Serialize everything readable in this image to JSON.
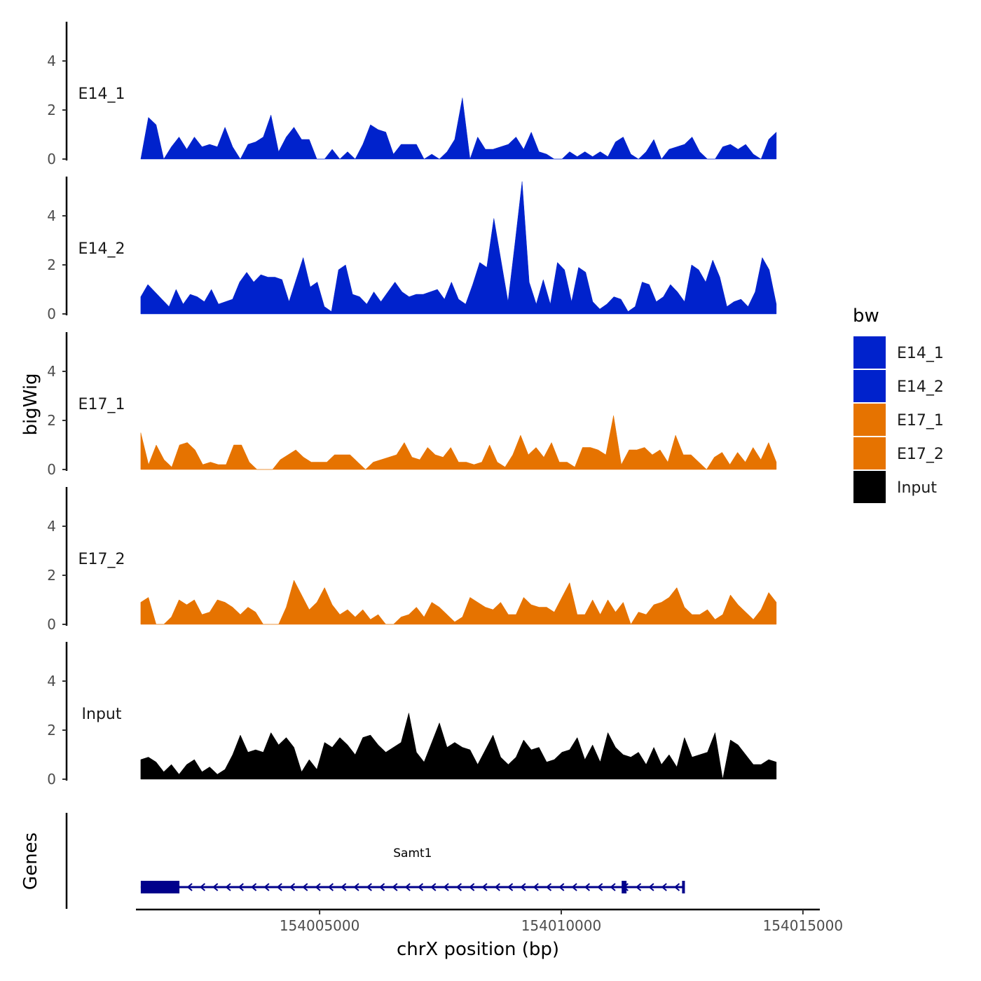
{
  "chart_data": {
    "type": "area",
    "ylabel": "bigWig",
    "xlabel": "chrX position (bp)",
    "ylim": [
      0,
      5.6
    ],
    "y_ticks": [
      "0",
      "2",
      "4"
    ],
    "xlim": [
      154001200,
      154015350
    ],
    "x_ticks": [
      {
        "value": 154005000,
        "label": "154005000"
      },
      {
        "value": 154010000,
        "label": "154010000"
      },
      {
        "value": 154015000,
        "label": "154015000"
      }
    ],
    "x_range_data": [
      154001300,
      154014450
    ],
    "legend": {
      "title": "bw",
      "entries": [
        {
          "name": "E14_1",
          "color": "#0022CC"
        },
        {
          "name": "E14_2",
          "color": "#0022CC"
        },
        {
          "name": "E17_1",
          "color": "#E67300"
        },
        {
          "name": "E17_2",
          "color": "#E67300"
        },
        {
          "name": "Input",
          "color": "#000000"
        }
      ]
    },
    "series": [
      {
        "name": "E14_1",
        "color": "#0022CC",
        "values": [
          0,
          1.7,
          1.4,
          0,
          0.5,
          0.9,
          0.4,
          0.9,
          0.5,
          0.6,
          0.5,
          1.3,
          0.5,
          0,
          0.6,
          0.7,
          0.9,
          1.8,
          0.3,
          0.9,
          1.3,
          0.8,
          0.8,
          0,
          0,
          0.4,
          0,
          0.3,
          0,
          0.6,
          1.4,
          1.2,
          1.1,
          0.2,
          0.6,
          0.6,
          0.6,
          0,
          0.2,
          0,
          0.3,
          0.8,
          2.5,
          0,
          0.9,
          0.4,
          0.4,
          0.5,
          0.6,
          0.9,
          0.4,
          1.1,
          0.3,
          0.2,
          0,
          0,
          0.3,
          0.1,
          0.3,
          0.1,
          0.3,
          0.1,
          0.7,
          0.9,
          0.2,
          0,
          0.3,
          0.8,
          0,
          0.4,
          0.5,
          0.6,
          0.9,
          0.3,
          0,
          0,
          0.5,
          0.6,
          0.4,
          0.6,
          0.2,
          0,
          0.8,
          1.1
        ]
      },
      {
        "name": "E14_2",
        "color": "#0022CC",
        "values": [
          0.7,
          1.2,
          0.9,
          0.6,
          0.3,
          1,
          0.4,
          0.8,
          0.7,
          0.5,
          1,
          0.4,
          0.5,
          0.6,
          1.3,
          1.7,
          1.3,
          1.6,
          1.5,
          1.5,
          1.4,
          0.5,
          1.4,
          2.3,
          1.1,
          1.3,
          0.3,
          0.1,
          1.8,
          2,
          0.8,
          0.7,
          0.4,
          0.9,
          0.5,
          0.9,
          1.3,
          0.9,
          0.7,
          0.8,
          0.8,
          0.9,
          1,
          0.6,
          1.3,
          0.6,
          0.4,
          1.2,
          2.1,
          1.9,
          3.9,
          2.2,
          0.5,
          2.9,
          5.4,
          1.3,
          0.4,
          1.4,
          0.4,
          2.1,
          1.8,
          0.5,
          1.9,
          1.7,
          0.5,
          0.2,
          0.4,
          0.7,
          0.6,
          0.1,
          0.3,
          1.3,
          1.2,
          0.5,
          0.7,
          1.2,
          0.9,
          0.5,
          2,
          1.8,
          1.3,
          2.2,
          1.5,
          0.3,
          0.5,
          0.6,
          0.3,
          0.9,
          2.3,
          1.8,
          0.4
        ]
      },
      {
        "name": "E17_1",
        "color": "#E67300",
        "values": [
          1.5,
          0.2,
          1,
          0.4,
          0.1,
          1,
          1.1,
          0.8,
          0.2,
          0.3,
          0.2,
          0.2,
          1,
          1,
          0.3,
          0,
          0,
          0,
          0.4,
          0.6,
          0.8,
          0.5,
          0.3,
          0.3,
          0.3,
          0.6,
          0.6,
          0.6,
          0.3,
          0,
          0.3,
          0.4,
          0.5,
          0.6,
          1.1,
          0.5,
          0.4,
          0.9,
          0.6,
          0.5,
          0.9,
          0.3,
          0.3,
          0.2,
          0.3,
          1,
          0.3,
          0.1,
          0.6,
          1.4,
          0.6,
          0.9,
          0.5,
          1.1,
          0.3,
          0.3,
          0.1,
          0.9,
          0.9,
          0.8,
          0.6,
          2.2,
          0.2,
          0.8,
          0.8,
          0.9,
          0.6,
          0.8,
          0.3,
          1.4,
          0.6,
          0.6,
          0.3,
          0,
          0.5,
          0.7,
          0.2,
          0.7,
          0.3,
          0.9,
          0.4,
          1.1,
          0.3
        ]
      },
      {
        "name": "E17_2",
        "color": "#E67300",
        "values": [
          0.9,
          1.1,
          0,
          0,
          0.3,
          1,
          0.8,
          1,
          0.4,
          0.5,
          1,
          0.9,
          0.7,
          0.4,
          0.7,
          0.5,
          0,
          0,
          0,
          0.7,
          1.8,
          1.2,
          0.6,
          0.9,
          1.5,
          0.8,
          0.4,
          0.6,
          0.3,
          0.6,
          0.2,
          0.4,
          0,
          0,
          0.3,
          0.4,
          0.7,
          0.3,
          0.9,
          0.7,
          0.4,
          0.1,
          0.3,
          1.1,
          0.9,
          0.7,
          0.6,
          0.9,
          0.4,
          0.4,
          1.1,
          0.8,
          0.7,
          0.7,
          0.5,
          1.1,
          1.7,
          0.4,
          0.4,
          1,
          0.4,
          1,
          0.5,
          0.9,
          0,
          0.5,
          0.4,
          0.8,
          0.9,
          1.1,
          1.5,
          0.7,
          0.4,
          0.4,
          0.6,
          0.2,
          0.4,
          1.2,
          0.8,
          0.5,
          0.2,
          0.6,
          1.3,
          0.9
        ]
      },
      {
        "name": "Input",
        "color": "#000000",
        "values": [
          0.8,
          0.9,
          0.7,
          0.3,
          0.6,
          0.2,
          0.6,
          0.8,
          0.3,
          0.5,
          0.2,
          0.4,
          1,
          1.8,
          1.1,
          1.2,
          1.1,
          1.9,
          1.4,
          1.7,
          1.3,
          0.3,
          0.8,
          0.4,
          1.5,
          1.3,
          1.7,
          1.4,
          1,
          1.7,
          1.8,
          1.4,
          1.1,
          1.3,
          1.5,
          2.7,
          1.1,
          0.7,
          1.5,
          2.3,
          1.3,
          1.5,
          1.3,
          1.2,
          0.6,
          1.2,
          1.8,
          0.9,
          0.6,
          0.9,
          1.6,
          1.2,
          1.3,
          0.7,
          0.8,
          1.1,
          1.2,
          1.7,
          0.8,
          1.4,
          0.7,
          1.9,
          1.3,
          1,
          0.9,
          1.1,
          0.6,
          1.3,
          0.6,
          1,
          0.5,
          1.7,
          0.9,
          1,
          1.1,
          1.9,
          0,
          1.6,
          1.4,
          1,
          0.6,
          0.6,
          0.8,
          0.7
        ]
      }
    ],
    "genes_panel": {
      "ylabel": "Genes",
      "genes": [
        {
          "name": "Samt1",
          "strand": "-",
          "start": 154001300,
          "end": 154012550,
          "exons": [
            [
              154001300,
              154002100
            ],
            [
              154011250,
              154011350
            ],
            [
              154012500,
              154012550
            ]
          ]
        }
      ]
    }
  }
}
